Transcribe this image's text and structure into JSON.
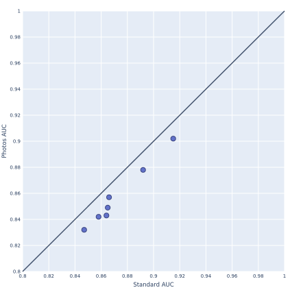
{
  "chart_data": {
    "type": "scatter",
    "title": "",
    "xlabel": "Standard AUC",
    "ylabel": "Photos AUC",
    "xlim": [
      0.8,
      1.0
    ],
    "ylim": [
      0.8,
      1.0
    ],
    "x_ticks": [
      "0.8",
      "0.82",
      "0.84",
      "0.86",
      "0.88",
      "0.9",
      "0.92",
      "0.94",
      "0.96",
      "0.98",
      "1"
    ],
    "y_ticks": [
      "0.8",
      "0.82",
      "0.84",
      "0.86",
      "0.88",
      "0.9",
      "0.92",
      "0.94",
      "0.96",
      "0.98",
      "1"
    ],
    "grid": true,
    "reference_line": {
      "x": [
        0.8,
        1.0
      ],
      "y": [
        0.8,
        1.0
      ],
      "color": "#44546e"
    },
    "series": [
      {
        "color": "#6272c9",
        "edge_color": "#3a4580",
        "points": [
          {
            "x": 0.847,
            "y": 0.832
          },
          {
            "x": 0.858,
            "y": 0.842
          },
          {
            "x": 0.864,
            "y": 0.843
          },
          {
            "x": 0.865,
            "y": 0.849
          },
          {
            "x": 0.866,
            "y": 0.857
          },
          {
            "x": 0.892,
            "y": 0.878
          },
          {
            "x": 0.915,
            "y": 0.902
          }
        ]
      }
    ],
    "plot_background": "#e5ecf6",
    "grid_color": "#ffffff"
  }
}
